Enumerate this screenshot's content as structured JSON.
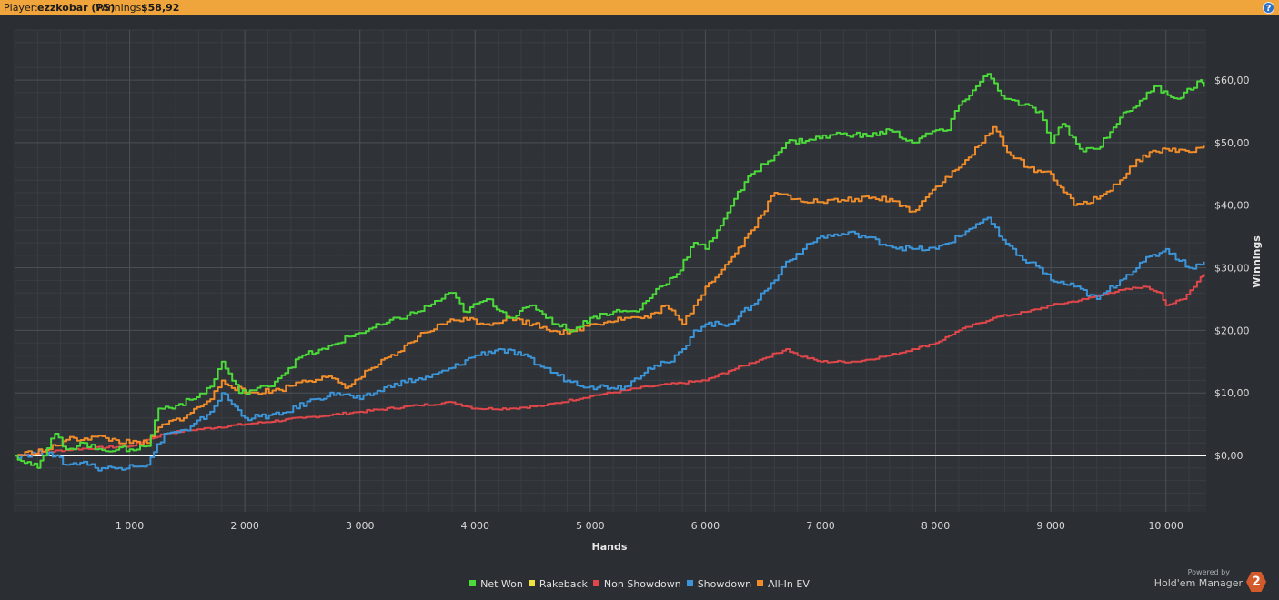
{
  "header": {
    "player_label": "Player:",
    "player_name": "ezzkobar (PS)",
    "winnings_label": "Winnings:",
    "winnings_value": "$58,92",
    "help_label": "?"
  },
  "branding": {
    "powered_by": "Powered by",
    "product": "Hold'em Manager",
    "logo_text": "2"
  },
  "colors": {
    "net_won": "#4cd93a",
    "rakeback": "#f0e040",
    "non_showdown": "#e0474a",
    "showdown": "#3c95d8",
    "allin_ev": "#f08c2a",
    "header_bar": "#f0a43c",
    "background": "#2b2e33"
  },
  "chart_data": {
    "type": "line",
    "xlabel": "Hands",
    "ylabel": "Winnings",
    "xlim": [
      0,
      10350
    ],
    "ylim": [
      -9,
      68
    ],
    "grid": true,
    "legend_position": "bottom",
    "x_ticks": [
      1000,
      2000,
      3000,
      4000,
      5000,
      6000,
      7000,
      8000,
      9000,
      10000
    ],
    "x_tick_labels": [
      "1 000",
      "2 000",
      "3 000",
      "4 000",
      "5 000",
      "6 000",
      "7 000",
      "8 000",
      "9 000",
      "10 000"
    ],
    "y_ticks": [
      0,
      10,
      20,
      30,
      40,
      50,
      60
    ],
    "y_tick_labels": [
      "$0,00",
      "$10,00",
      "$20,00",
      "$30,00",
      "$40,00",
      "$50,00",
      "$60,00"
    ],
    "series": [
      {
        "name": "Net Won",
        "color_key": "net_won",
        "x": [
          0,
          200,
          250,
          350,
          450,
          600,
          700,
          1000,
          1150,
          1250,
          1400,
          1550,
          1700,
          1800,
          1950,
          2200,
          2500,
          2700,
          2900,
          3200,
          3500,
          3800,
          3900,
          4100,
          4300,
          4500,
          4700,
          4850,
          5000,
          5200,
          5400,
          5600,
          5750,
          5900,
          6000,
          6100,
          6250,
          6400,
          6600,
          6700,
          6900,
          7200,
          7400,
          7600,
          7800,
          8000,
          8100,
          8200,
          8350,
          8450,
          8600,
          8750,
          8900,
          9000,
          9100,
          9250,
          9400,
          9600,
          9800,
          9900,
          10100,
          10300,
          10330
        ],
        "y": [
          0,
          -2,
          0,
          3.5,
          1,
          2,
          1,
          1,
          1.5,
          7.5,
          8,
          9,
          11,
          15,
          10,
          11,
          16,
          17,
          19,
          21,
          23,
          26,
          23,
          25,
          22,
          24,
          21,
          20,
          22,
          23,
          23,
          27,
          29,
          34,
          33,
          36,
          41,
          45,
          48,
          50,
          50.5,
          51.5,
          51,
          52,
          50,
          52,
          52,
          56,
          59,
          61,
          57,
          56,
          55,
          50,
          53,
          49,
          49,
          54,
          57,
          59,
          57,
          60,
          58.92
        ]
      },
      {
        "name": "All-In EV",
        "color_key": "allin_ev",
        "x": [
          0,
          300,
          450,
          700,
          1000,
          1150,
          1250,
          1500,
          1700,
          1800,
          2000,
          2300,
          2500,
          2700,
          2900,
          3100,
          3300,
          3500,
          3700,
          3900,
          4100,
          4300,
          4500,
          4800,
          5000,
          5300,
          5500,
          5650,
          5800,
          5900,
          6000,
          6200,
          6400,
          6600,
          6800,
          7000,
          7300,
          7600,
          7800,
          8000,
          8200,
          8400,
          8500,
          8650,
          8800,
          9000,
          9200,
          9400,
          9600,
          9800,
          10000,
          10200,
          10330
        ],
        "y": [
          0,
          1,
          2.5,
          3,
          2,
          2,
          4.5,
          6.5,
          9,
          12,
          10,
          10.5,
          12,
          12.5,
          11,
          14,
          16,
          19,
          21,
          22,
          21,
          22,
          21,
          19.5,
          21,
          22,
          22,
          24,
          21,
          24,
          27,
          31,
          36,
          42,
          41,
          40.5,
          41,
          41,
          39,
          43,
          46,
          50,
          52.5,
          48,
          46,
          45,
          40,
          41,
          44,
          48,
          49,
          48.5,
          49.5
        ]
      },
      {
        "name": "Showdown",
        "color_key": "showdown",
        "x": [
          0,
          300,
          450,
          600,
          700,
          900,
          1000,
          1150,
          1300,
          1500,
          1700,
          1800,
          2000,
          2300,
          2600,
          2800,
          3000,
          3300,
          3600,
          3800,
          4000,
          4200,
          4400,
          4600,
          4800,
          5000,
          5300,
          5500,
          5700,
          5800,
          5900,
          6000,
          6200,
          6400,
          6600,
          6700,
          6850,
          7000,
          7300,
          7600,
          7800,
          8000,
          8200,
          8350,
          8450,
          8550,
          8700,
          8900,
          9000,
          9200,
          9400,
          9600,
          9800,
          10000,
          10200,
          10330
        ],
        "y": [
          0,
          0.5,
          -1.5,
          -1,
          -2,
          -2,
          -1.5,
          -1.5,
          3.5,
          4,
          7,
          10,
          6,
          6.5,
          9,
          10,
          9,
          11.5,
          12.5,
          14,
          16,
          17,
          16,
          14,
          12,
          11,
          11,
          14,
          15,
          17,
          20,
          21,
          21,
          24,
          28,
          31,
          33,
          35,
          35.5,
          33.5,
          33,
          33,
          35,
          37,
          38,
          35,
          32,
          30,
          28,
          27,
          25,
          28,
          31,
          33,
          30,
          31
        ]
      },
      {
        "name": "Non Showdown",
        "color_key": "non_showdown",
        "x": [
          0,
          500,
          1000,
          1150,
          1300,
          1500,
          2000,
          2500,
          3000,
          3500,
          3800,
          4000,
          4300,
          4600,
          5000,
          5500,
          6000,
          6200,
          6500,
          6700,
          6800,
          7000,
          7300,
          7600,
          7800,
          8000,
          8200,
          8500,
          8800,
          9000,
          9300,
          9500,
          9800,
          9950,
          10000,
          10150,
          10300,
          10330
        ],
        "y": [
          0,
          1,
          1.5,
          2.5,
          3.5,
          4,
          5,
          6,
          7,
          8,
          8.5,
          7.5,
          7.5,
          8,
          9.5,
          11,
          12,
          13.5,
          15.5,
          17,
          16,
          15,
          15,
          16,
          17,
          18,
          20,
          22,
          23,
          24,
          25,
          26,
          27,
          26,
          24,
          25,
          28.5,
          29
        ]
      }
    ],
    "legend": [
      {
        "name": "Net Won",
        "color_key": "net_won"
      },
      {
        "name": "Rakeback",
        "color_key": "rakeback"
      },
      {
        "name": "Non Showdown",
        "color_key": "non_showdown"
      },
      {
        "name": "Showdown",
        "color_key": "showdown"
      },
      {
        "name": "All-In EV",
        "color_key": "allin_ev"
      }
    ]
  }
}
